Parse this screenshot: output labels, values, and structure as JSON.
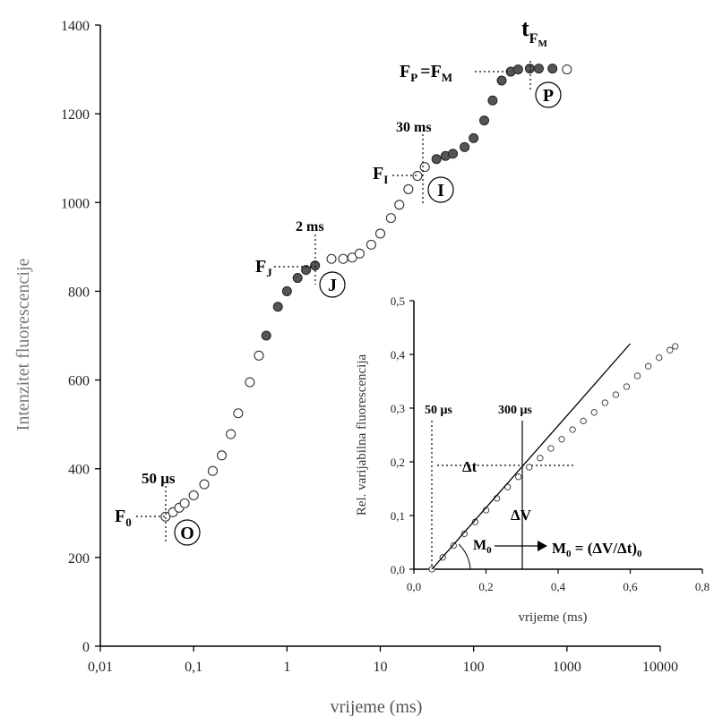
{
  "chart_data": [
    {
      "type": "scatter",
      "xlabel": "vrijeme (ms)",
      "ylabel": "Intenzitet fluorescencije",
      "x_scale": "log",
      "xlim": [
        0.01,
        10000
      ],
      "ylim": [
        0,
        1400
      ],
      "x_ticks": [
        "0,01",
        "0,1",
        "1",
        "10",
        "100",
        "1000",
        "10000"
      ],
      "y_ticks": [
        "0",
        "200",
        "400",
        "600",
        "800",
        "1000",
        "1200",
        "1400"
      ],
      "series": [
        {
          "points": [
            [
              0.05,
              292
            ],
            [
              0.06,
              302
            ],
            [
              0.07,
              312
            ],
            [
              0.08,
              322
            ],
            [
              0.1,
              340
            ],
            [
              0.13,
              365
            ],
            [
              0.16,
              395
            ],
            [
              0.2,
              430
            ],
            [
              0.25,
              478
            ],
            [
              0.3,
              525
            ],
            [
              0.4,
              595
            ],
            [
              0.5,
              655
            ],
            [
              0.6,
              700
            ],
            [
              0.8,
              765
            ],
            [
              1.0,
              800
            ],
            [
              1.3,
              830
            ],
            [
              1.6,
              848
            ],
            [
              2.0,
              858
            ],
            [
              3.0,
              873
            ],
            [
              4.0,
              873
            ],
            [
              5.0,
              876
            ],
            [
              6.0,
              885
            ],
            [
              8.0,
              905
            ],
            [
              10.0,
              930
            ],
            [
              13.0,
              965
            ],
            [
              16.0,
              995
            ],
            [
              20.0,
              1030
            ],
            [
              25.0,
              1060
            ],
            [
              30.0,
              1080
            ],
            [
              40.0,
              1098
            ],
            [
              50.0,
              1105
            ],
            [
              60.0,
              1110
            ],
            [
              80.0,
              1125
            ],
            [
              100.0,
              1145
            ],
            [
              130.0,
              1185
            ],
            [
              160.0,
              1230
            ],
            [
              200.0,
              1275
            ],
            [
              250.0,
              1295
            ],
            [
              300.0,
              1300
            ],
            [
              400.0,
              1302
            ],
            [
              500.0,
              1302
            ],
            [
              700.0,
              1302
            ],
            [
              1000.0,
              1300
            ]
          ]
        }
      ],
      "annotations": {
        "f0": "F",
        "f0_sub": "0",
        "fj": "F",
        "fj_sub": "J",
        "fi": "F",
        "fi_sub": "I",
        "fp": "F",
        "fp_sub": "P",
        "fp_eq": "=F",
        "fp_eq_sub": "M",
        "tfm": "t",
        "tfm_sub": "F",
        "tfm_subsub": "M",
        "t50": "50 μs",
        "t2": "2 ms",
        "t30": "30 ms",
        "label_o": "O",
        "label_j": "J",
        "label_i": "I",
        "label_p": "P"
      }
    },
    {
      "type": "scatter",
      "xlabel": "vrijeme (ms)",
      "ylabel": "Rel. varijabilna fluorescencija",
      "xlim": [
        0,
        0.8
      ],
      "ylim": [
        0,
        0.5
      ],
      "x_ticks": [
        "0,0",
        "0,2",
        "0,4",
        "0,6",
        "0,8"
      ],
      "y_ticks": [
        "0,0",
        "0,1",
        "0,2",
        "0,3",
        "0,4",
        "0,5"
      ],
      "series": [
        {
          "points": [
            [
              0.05,
              0.0
            ],
            [
              0.08,
              0.022
            ],
            [
              0.11,
              0.044
            ],
            [
              0.14,
              0.066
            ],
            [
              0.17,
              0.088
            ],
            [
              0.2,
              0.11
            ],
            [
              0.23,
              0.132
            ],
            [
              0.26,
              0.153
            ],
            [
              0.29,
              0.172
            ],
            [
              0.32,
              0.19
            ],
            [
              0.35,
              0.207
            ],
            [
              0.38,
              0.225
            ],
            [
              0.41,
              0.242
            ],
            [
              0.44,
              0.26
            ],
            [
              0.47,
              0.276
            ],
            [
              0.5,
              0.292
            ],
            [
              0.53,
              0.31
            ],
            [
              0.56,
              0.325
            ],
            [
              0.59,
              0.34
            ],
            [
              0.62,
              0.36
            ],
            [
              0.65,
              0.378
            ],
            [
              0.68,
              0.394
            ],
            [
              0.71,
              0.408
            ],
            [
              0.725,
              0.415
            ]
          ]
        }
      ],
      "tangent_line": [
        [
          0.05,
          0.0
        ],
        [
          0.6,
          0.42
        ]
      ],
      "annotations": {
        "t50": "50 μs",
        "t300": "300 μs",
        "dt": "Δt",
        "dv": "ΔV",
        "m0": "M",
        "m0_sub": "0",
        "formula": "M",
        "formula_sub": "0",
        "formula_rest": " = (ΔV/Δt)",
        "formula_end": "0"
      }
    }
  ]
}
